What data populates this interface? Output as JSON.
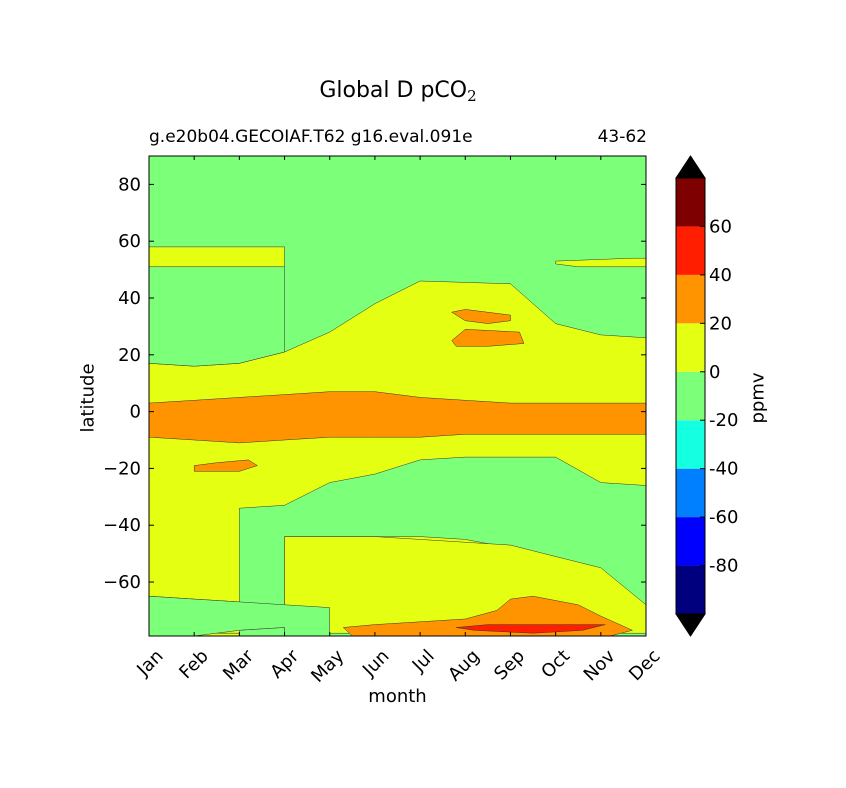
{
  "chart_data": {
    "type": "heatmap",
    "subtype": "filled-contour",
    "title_main": "Global D pCO",
    "title_subscript": "2",
    "subtitle_left": "g.e20b04.GECOIAF.T62 g16.eval.091e",
    "subtitle_right": "43-62",
    "xlabel": "month",
    "ylabel": "latitude",
    "colorbar_label": "ppmv",
    "x_categories": [
      "Jan",
      "Feb",
      "Mar",
      "Apr",
      "May",
      "Jun",
      "Jul",
      "Aug",
      "Sep",
      "Oct",
      "Nov",
      "Dec"
    ],
    "xlim": [
      0,
      11
    ],
    "ylim": [
      -79,
      90
    ],
    "yticks": [
      80,
      60,
      40,
      20,
      0,
      -20,
      -40,
      -60
    ],
    "ytick_labels": [
      "80",
      "60",
      "40",
      "20",
      "0",
      "−20",
      "−40",
      "−60"
    ],
    "levels": [
      {
        "range": [
          -100,
          -80
        ],
        "color": "#00007f"
      },
      {
        "range": [
          -80,
          -60
        ],
        "color": "#0000ff"
      },
      {
        "range": [
          -60,
          -40
        ],
        "color": "#0080ff"
      },
      {
        "range": [
          -40,
          -20
        ],
        "color": "#15ffe1"
      },
      {
        "range": [
          -20,
          0
        ],
        "color": "#7cff79"
      },
      {
        "range": [
          0,
          20
        ],
        "color": "#e4ff12"
      },
      {
        "range": [
          20,
          40
        ],
        "color": "#ff9400"
      },
      {
        "range": [
          40,
          60
        ],
        "color": "#ff1e00"
      },
      {
        "range": [
          60,
          80
        ],
        "color": "#7f0000"
      }
    ],
    "extend_colors": {
      "under": "#000000",
      "over": "#000000"
    },
    "colorbar_ticks": [
      60,
      40,
      20,
      0,
      -20,
      -40,
      -60,
      -80
    ],
    "colorbar_tick_labels": [
      "60",
      "40",
      "20",
      "0",
      "-20",
      "-40",
      "-60",
      "-80"
    ],
    "background_level": [
      -20,
      0
    ],
    "regions": [
      {
        "level": [
          0,
          20
        ],
        "points": [
          [
            0,
            58
          ],
          [
            3,
            58
          ],
          [
            3,
            51
          ],
          [
            2,
            51
          ],
          [
            0,
            51
          ]
        ]
      },
      {
        "level": [
          0,
          20
        ],
        "points": [
          [
            9,
            53
          ],
          [
            10.7,
            54
          ],
          [
            11,
            54
          ],
          [
            11,
            51
          ],
          [
            9.5,
            51
          ],
          [
            9,
            52
          ]
        ]
      },
      {
        "level": [
          0,
          20
        ],
        "points": [
          [
            0,
            17
          ],
          [
            1,
            16
          ],
          [
            2,
            17
          ],
          [
            3,
            21
          ],
          [
            4,
            28
          ],
          [
            5,
            38
          ],
          [
            6,
            46
          ],
          [
            8,
            45
          ],
          [
            9,
            31
          ],
          [
            10,
            27
          ],
          [
            11,
            26
          ],
          [
            11,
            -26
          ],
          [
            10,
            -25
          ],
          [
            9,
            -16
          ],
          [
            7,
            -16
          ],
          [
            6,
            -17
          ],
          [
            5,
            -22
          ],
          [
            4,
            -25
          ],
          [
            3,
            -33
          ],
          [
            2,
            -34
          ],
          [
            2,
            -67
          ],
          [
            1,
            -66
          ],
          [
            0,
            -65
          ]
        ]
      },
      {
        "level": [
          0,
          20
        ],
        "points": [
          [
            0,
            -78
          ],
          [
            11,
            -78
          ],
          [
            11,
            -69
          ],
          [
            10,
            -56
          ],
          [
            9,
            -52
          ],
          [
            8,
            -48
          ],
          [
            7,
            -45
          ],
          [
            6,
            -44
          ],
          [
            5,
            -44
          ],
          [
            4,
            -44
          ],
          [
            3,
            -44
          ],
          [
            3,
            -69
          ],
          [
            2,
            -71
          ],
          [
            1,
            -78
          ],
          [
            0,
            -78
          ]
        ]
      },
      {
        "level": [
          0,
          20
        ],
        "points": [
          [
            0,
            -78
          ],
          [
            11,
            -78
          ],
          [
            11,
            -68
          ],
          [
            10,
            -55
          ],
          [
            9,
            -51
          ],
          [
            8,
            -47
          ],
          [
            5,
            -44
          ],
          [
            3,
            -44
          ],
          [
            3,
            -79
          ],
          [
            0,
            -79
          ]
        ]
      },
      {
        "level": [
          20,
          40
        ],
        "points": [
          [
            0,
            3
          ],
          [
            1,
            4
          ],
          [
            2,
            5
          ],
          [
            3,
            6
          ],
          [
            4,
            7
          ],
          [
            5,
            7
          ],
          [
            6,
            5
          ],
          [
            7,
            4
          ],
          [
            8,
            3
          ],
          [
            9,
            3
          ],
          [
            10,
            3
          ],
          [
            11,
            3
          ],
          [
            11,
            -8
          ],
          [
            10,
            -8
          ],
          [
            9,
            -8
          ],
          [
            8,
            -8
          ],
          [
            7,
            -8
          ],
          [
            6,
            -9
          ],
          [
            5,
            -9
          ],
          [
            4,
            -9
          ],
          [
            3,
            -10
          ],
          [
            2,
            -11
          ],
          [
            1,
            -10
          ],
          [
            0,
            -9
          ]
        ]
      },
      {
        "level": [
          20,
          40
        ],
        "points": [
          [
            6.7,
            35
          ],
          [
            7.0,
            36
          ],
          [
            8.0,
            34
          ],
          [
            8.0,
            32
          ],
          [
            7.5,
            31
          ],
          [
            7.0,
            32
          ]
        ]
      },
      {
        "level": [
          20,
          40
        ],
        "points": [
          [
            6.7,
            25
          ],
          [
            7.0,
            29
          ],
          [
            8.2,
            28
          ],
          [
            8.3,
            24
          ],
          [
            7.5,
            23
          ],
          [
            6.8,
            23
          ]
        ]
      },
      {
        "level": [
          20,
          40
        ],
        "points": [
          [
            1.0,
            -19
          ],
          [
            1.5,
            -18
          ],
          [
            2.2,
            -17
          ],
          [
            2.4,
            -19
          ],
          [
            2.0,
            -21
          ],
          [
            1.0,
            -21
          ]
        ]
      },
      {
        "level": [
          20,
          40
        ],
        "points": [
          [
            4.3,
            -76
          ],
          [
            5,
            -75
          ],
          [
            6,
            -74
          ],
          [
            7,
            -73
          ],
          [
            7.7,
            -70
          ],
          [
            8.0,
            -66
          ],
          [
            8.5,
            -65
          ],
          [
            9.5,
            -68
          ],
          [
            10,
            -72
          ],
          [
            10.7,
            -77
          ],
          [
            10.2,
            -79
          ],
          [
            4.5,
            -79
          ]
        ]
      },
      {
        "level": [
          40,
          60
        ],
        "points": [
          [
            6.8,
            -76
          ],
          [
            7.5,
            -75
          ],
          [
            8.5,
            -75
          ],
          [
            9.5,
            -75
          ],
          [
            10.1,
            -75
          ],
          [
            9.6,
            -77
          ],
          [
            8.5,
            -78
          ],
          [
            7.2,
            -77
          ]
        ]
      }
    ],
    "light_green_patches": [
      {
        "level": [
          -20,
          0
        ],
        "points": [
          [
            0,
            51
          ],
          [
            2,
            51
          ],
          [
            3,
            51
          ],
          [
            3,
            21
          ],
          [
            2,
            17
          ],
          [
            1,
            16
          ],
          [
            0,
            17
          ]
        ]
      },
      {
        "level": [
          -20,
          0
        ],
        "points": [
          [
            0,
            -65
          ],
          [
            1,
            -66
          ],
          [
            2,
            -67
          ],
          [
            3,
            -68
          ],
          [
            4,
            -69
          ],
          [
            4,
            -79
          ],
          [
            3,
            -79
          ],
          [
            3,
            -76
          ],
          [
            2,
            -77
          ],
          [
            1,
            -79
          ],
          [
            0,
            -79
          ]
        ]
      },
      {
        "level": [
          -20,
          0
        ],
        "points": [
          [
            2,
            -77
          ],
          [
            3,
            -76
          ],
          [
            3,
            -79
          ],
          [
            2,
            -79
          ]
        ]
      }
    ]
  }
}
